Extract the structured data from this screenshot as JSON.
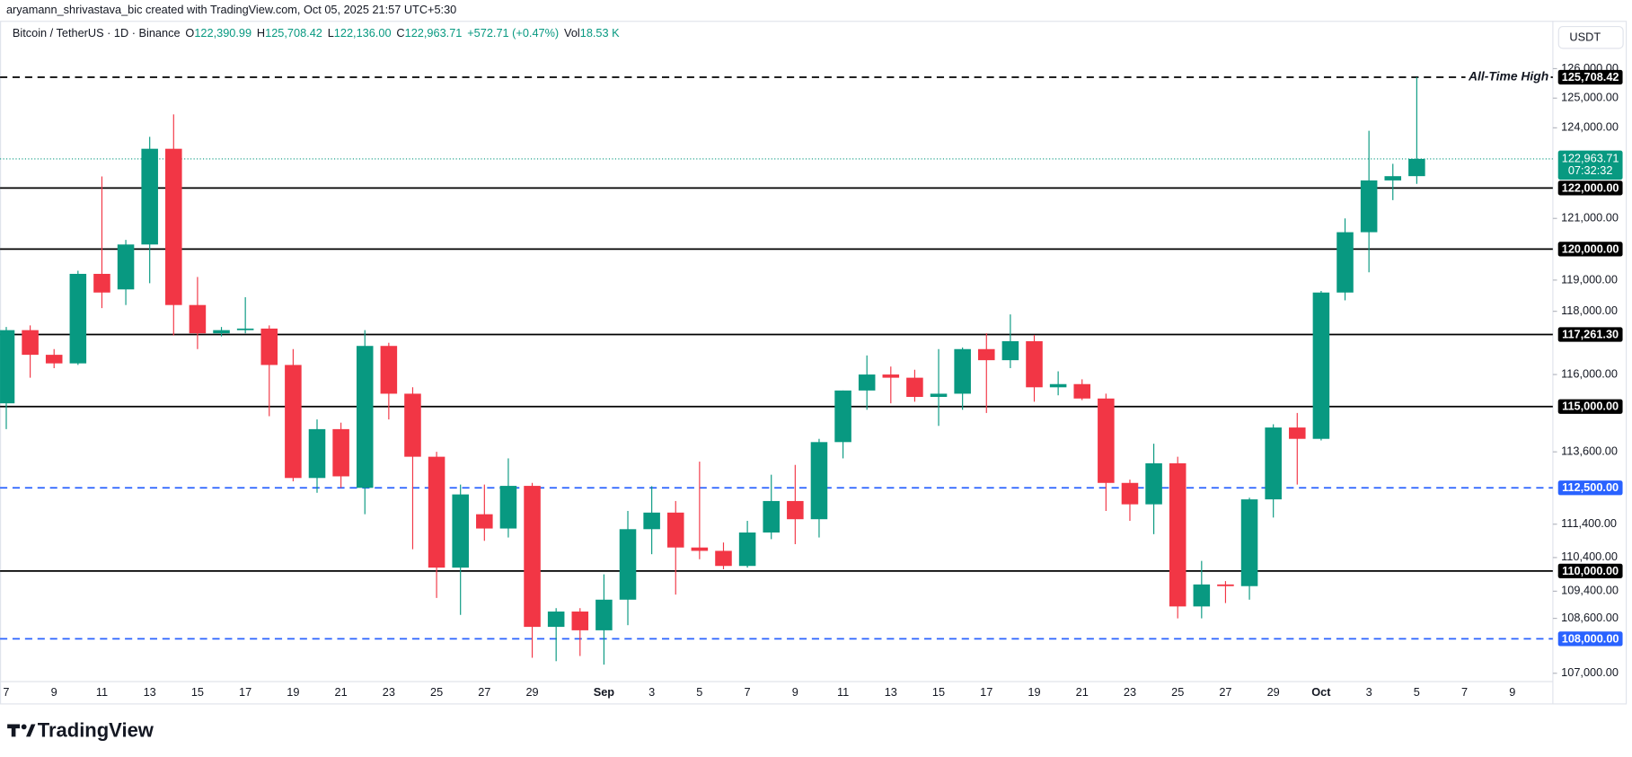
{
  "chart_data": {
    "type": "candlestick",
    "attribution": "aryamann_shrivastava_bic created with TradingView.com, Oct 05, 2025 21:57 UTC+5:30",
    "legend": {
      "symbol": "Bitcoin / TetherUS · 1D · Binance",
      "open_label": "O",
      "open": "122,390.99",
      "high_label": "H",
      "high": "125,708.42",
      "low_label": "L",
      "low": "122,136.00",
      "close_label": "C",
      "close": "122,963.71",
      "change": "+572.71 (+0.47%)",
      "volume_label": "Vol",
      "volume": "18.53 K"
    },
    "currency": "USDT",
    "brand": "TradingView",
    "up_color": "#089981",
    "down_color": "#f23645",
    "log_scale": true,
    "grid": false,
    "categories": [
      "7",
      null,
      "9",
      null,
      "11",
      null,
      "13",
      null,
      "15",
      null,
      "17",
      null,
      "19",
      null,
      "21",
      null,
      "23",
      null,
      "25",
      null,
      "27",
      null,
      "29",
      null,
      null,
      "Sep",
      null,
      "3",
      null,
      "5",
      null,
      "7",
      null,
      "9",
      null,
      "11",
      null,
      "13",
      null,
      "15",
      null,
      "17",
      null,
      "19",
      null,
      "21",
      null,
      "23",
      null,
      "25",
      null,
      "27",
      null,
      "29",
      null,
      "Oct",
      null,
      "3",
      null,
      "5",
      null,
      "7",
      null,
      "9"
    ],
    "open": [
      115100,
      117400,
      116620,
      116350,
      119200,
      118700,
      120150,
      123300,
      118200,
      117300,
      117400,
      117450,
      116300,
      112800,
      114300,
      112500,
      116900,
      115400,
      113450,
      110100,
      111700,
      111270,
      112560,
      108350,
      108800,
      108250,
      109150,
      111250,
      111750,
      110700,
      110600,
      110150,
      111150,
      112100,
      111550,
      113900,
      115500,
      116000,
      115900,
      115300,
      115400,
      116800,
      116450,
      117050,
      115600,
      115700,
      115250,
      112650,
      112000,
      113250,
      108950,
      109600,
      109550,
      112150,
      114350,
      114000,
      118600,
      120550,
      122250,
      122390.99,
      null,
      null,
      null,
      null
    ],
    "high": [
      117500,
      117550,
      116800,
      119300,
      122380,
      120300,
      123700,
      124450,
      119100,
      117500,
      118450,
      117550,
      116800,
      114600,
      114500,
      117400,
      117000,
      115600,
      113600,
      112600,
      112600,
      113400,
      112650,
      108900,
      108900,
      109900,
      111800,
      112550,
      112100,
      113300,
      110850,
      111500,
      112900,
      113200,
      114000,
      115500,
      116600,
      116250,
      116150,
      116800,
      116850,
      117300,
      117900,
      117250,
      116100,
      115850,
      115400,
      112750,
      113850,
      113450,
      110300,
      109700,
      112200,
      114450,
      114800,
      118650,
      121000,
      123900,
      122800,
      125708.42,
      null,
      null,
      null,
      null
    ],
    "low": [
      114300,
      115900,
      116200,
      116300,
      118100,
      118200,
      118900,
      117230,
      116800,
      117200,
      117300,
      114700,
      112700,
      112350,
      112500,
      111700,
      114600,
      110650,
      109200,
      108700,
      110900,
      111000,
      107450,
      107350,
      107500,
      107250,
      108400,
      110500,
      109300,
      110350,
      110050,
      110100,
      110950,
      110800,
      111000,
      113400,
      114900,
      115100,
      115150,
      114400,
      114900,
      114800,
      116200,
      115150,
      115350,
      115200,
      111800,
      111500,
      111100,
      108600,
      108600,
      109050,
      109150,
      111600,
      112600,
      113950,
      118350,
      119250,
      121600,
      122136.0,
      null,
      null,
      null,
      null
    ],
    "close": [
      117400,
      116620,
      116350,
      119200,
      118600,
      120150,
      123300,
      118200,
      117300,
      117400,
      117450,
      116300,
      112800,
      114300,
      112850,
      116900,
      115400,
      113450,
      110100,
      112300,
      111270,
      112560,
      108350,
      108800,
      108250,
      109150,
      111250,
      111750,
      110700,
      110600,
      110150,
      111150,
      112100,
      111550,
      113900,
      115500,
      116000,
      115900,
      115300,
      115400,
      116800,
      116450,
      117050,
      115600,
      115700,
      115250,
      112650,
      112000,
      113250,
      108950,
      109600,
      109550,
      112150,
      114350,
      114000,
      118600,
      120550,
      122250,
      122390,
      122963.71,
      null,
      null,
      null,
      null
    ],
    "ylim": [
      106760,
      127640
    ],
    "yticks": [
      {
        "value": 126000,
        "label": "126,000.00"
      },
      {
        "value": 125000,
        "label": "125,000.00"
      },
      {
        "value": 124000,
        "label": "124,000.00"
      },
      {
        "value": 121000,
        "label": "121,000.00"
      },
      {
        "value": 119000,
        "label": "119,000.00"
      },
      {
        "value": 118000,
        "label": "118,000.00"
      },
      {
        "value": 116000,
        "label": "116,000.00"
      },
      {
        "value": 113600,
        "label": "113,600.00"
      },
      {
        "value": 111400,
        "label": "111,400.00"
      },
      {
        "value": 110400,
        "label": "110,400.00"
      },
      {
        "value": 109400,
        "label": "109,400.00"
      },
      {
        "value": 108600,
        "label": "108,600.00"
      },
      {
        "value": 107000,
        "label": "107,000.00"
      }
    ],
    "hlines": [
      {
        "value": 125708.42,
        "label": "125,708.42",
        "note": "All-Time High",
        "style": "dashed",
        "color": "#000000"
      },
      {
        "value": 122000,
        "label": "122,000.00",
        "style": "solid",
        "color": "#000000"
      },
      {
        "value": 120000,
        "label": "120,000.00",
        "style": "solid",
        "color": "#000000"
      },
      {
        "value": 117261.3,
        "label": "117,261.30",
        "style": "solid",
        "color": "#000000"
      },
      {
        "value": 115000,
        "label": "115,000.00",
        "style": "solid",
        "color": "#000000"
      },
      {
        "value": 112500,
        "label": "112,500.00",
        "style": "dashed",
        "color": "#2962ff"
      },
      {
        "value": 110000,
        "label": "110,000.00",
        "style": "solid",
        "color": "#000000"
      },
      {
        "value": 108000,
        "label": "108,000.00",
        "style": "dashed",
        "color": "#2962ff"
      }
    ],
    "last_price": {
      "value": 122963.71,
      "label": "122,963.71",
      "countdown": "07:32:32",
      "color": "#089981"
    }
  }
}
